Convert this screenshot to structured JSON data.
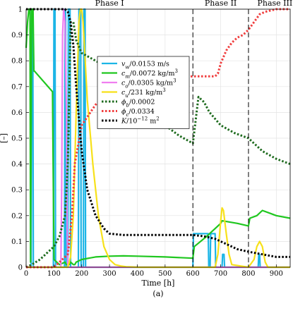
{
  "chart_data": {
    "type": "line",
    "title": "",
    "caption": "(a)",
    "xlabel": "Time [h]",
    "ylabel": "[–]",
    "xlim": [
      0,
      950
    ],
    "ylim": [
      0,
      1
    ],
    "xticks": [
      "0",
      "100",
      "200",
      "300",
      "400",
      "500",
      "600",
      "700",
      "800",
      "900"
    ],
    "yticks": [
      "0",
      "0.1",
      "0.2",
      "0.3",
      "0.4",
      "0.5",
      "0.6",
      "0.7",
      "0.8",
      "0.9",
      "1"
    ],
    "grid": true,
    "legend_position": "upper-center",
    "phase_boundaries": [
      600,
      800
    ],
    "phase_labels": [
      {
        "text": "Phase I",
        "x": 300
      },
      {
        "text": "Phase II",
        "x": 700
      },
      {
        "text": "Phase III",
        "x": 895
      }
    ],
    "series": [
      {
        "name": "v_w/0.0153 m/s",
        "legend_main": "v",
        "legend_sub": "w",
        "legend_rest": "/0.0153 m/s",
        "legend_sup": "",
        "color": "#1cb5e6",
        "dash": "solid",
        "x": [
          0,
          18,
          20,
          24,
          26,
          98,
          100,
          104,
          106,
          138,
          140,
          142,
          144,
          150,
          152,
          158,
          160,
          188,
          190,
          196,
          198,
          206,
          208,
          212,
          214,
          600,
          602,
          655,
          657,
          662,
          664,
          680,
          682,
          705,
          707,
          712,
          714,
          835,
          837,
          840,
          842,
          950
        ],
        "y": [
          0,
          0,
          1,
          1,
          0,
          0,
          1,
          1,
          0,
          0,
          1,
          1,
          0,
          0,
          1,
          1,
          0,
          0,
          1,
          1,
          0,
          0,
          1,
          1,
          0,
          0,
          0.13,
          0.13,
          0,
          0,
          0.13,
          0.13,
          0,
          0,
          0.05,
          0.05,
          0,
          0,
          0.05,
          0.05,
          0,
          0
        ]
      },
      {
        "name": "c_m/0.0072 kg/m^3",
        "legend_main": "c",
        "legend_sub": "m",
        "legend_rest": "/0.0072 kg/m",
        "legend_sup": "3",
        "color": "#1fc71f",
        "dash": "solid",
        "x": [
          0,
          5,
          10,
          14,
          16,
          20,
          25,
          28,
          30,
          95,
          100,
          120,
          140,
          145,
          155,
          160,
          170,
          175,
          180,
          200,
          250,
          300,
          350,
          400,
          500,
          600,
          605,
          650,
          700,
          705,
          760,
          800,
          805,
          830,
          850,
          900,
          950
        ],
        "y": [
          0.85,
          0.95,
          1,
          1,
          0.02,
          1,
          1,
          0.76,
          0.76,
          0.68,
          0.03,
          0.01,
          0.02,
          0.01,
          0.01,
          0.02,
          0.01,
          0.01,
          0.02,
          0.03,
          0.04,
          0.043,
          0.044,
          0.043,
          0.04,
          0.035,
          0.08,
          0.12,
          0.17,
          0.18,
          0.17,
          0.16,
          0.19,
          0.2,
          0.22,
          0.2,
          0.19
        ]
      },
      {
        "name": "c_o/0.0305 kg/m^3",
        "legend_main": "c",
        "legend_sub": "o",
        "legend_rest": "/0.0305 kg/m",
        "legend_sup": "3",
        "color": "#f07ef0",
        "dash": "solid",
        "x": [
          0,
          125,
          128,
          131,
          135,
          140,
          145,
          148,
          150,
          155,
          160,
          200,
          950
        ],
        "y": [
          0,
          0,
          0.3,
          0.9,
          1,
          0.95,
          0.6,
          0.1,
          0,
          0,
          0,
          0,
          0
        ]
      },
      {
        "name": "c_u/231 kg/m^3",
        "legend_main": "c",
        "legend_sub": "u",
        "legend_rest": "/231 kg/m",
        "legend_sup": "3",
        "color": "#f7e11a",
        "dash": "solid",
        "x": [
          0,
          150,
          160,
          170,
          180,
          190,
          195,
          200,
          205,
          210,
          220,
          240,
          260,
          280,
          300,
          320,
          340,
          360,
          380,
          400,
          600,
          680,
          690,
          700,
          705,
          710,
          720,
          730,
          740,
          800,
          820,
          830,
          840,
          850,
          860,
          870,
          950
        ],
        "y": [
          0,
          0,
          0.04,
          0.2,
          0.6,
          0.95,
          1,
          1,
          0.95,
          0.85,
          0.65,
          0.4,
          0.2,
          0.08,
          0.03,
          0.01,
          0.005,
          0.002,
          0.001,
          0,
          0,
          0,
          0.05,
          0.18,
          0.23,
          0.22,
          0.13,
          0.05,
          0.01,
          0,
          0.03,
          0.08,
          0.1,
          0.08,
          0.02,
          0,
          0
        ]
      },
      {
        "name": "phi_b/0.0002",
        "legend_main": "ϕ",
        "legend_sub": "b",
        "legend_rest": "/0.0002",
        "legend_sup": "",
        "color": "#1e6b1e",
        "dash": "dot",
        "x": [
          0,
          20,
          50,
          80,
          100,
          120,
          140,
          150,
          160,
          170,
          180,
          200,
          250,
          300,
          350,
          400,
          450,
          500,
          550,
          600,
          620,
          640,
          660,
          700,
          750,
          800,
          850,
          900,
          950
        ],
        "y": [
          0,
          0.01,
          0.03,
          0.06,
          0.08,
          0.12,
          0.2,
          0.4,
          0.95,
          0.95,
          0.88,
          0.83,
          0.8,
          0.77,
          0.72,
          0.66,
          0.6,
          0.55,
          0.51,
          0.48,
          0.66,
          0.64,
          0.6,
          0.55,
          0.52,
          0.5,
          0.45,
          0.42,
          0.4
        ]
      },
      {
        "name": "phi_c/0.0334",
        "legend_main": "ϕ",
        "legend_sub": "c",
        "legend_rest": "/0.0334",
        "legend_sup": "",
        "color": "#f03e3e",
        "dash": "dot",
        "x": [
          0,
          100,
          150,
          165,
          175,
          200,
          250,
          300,
          400,
          500,
          600,
          680,
          690,
          700,
          720,
          740,
          760,
          780,
          800,
          820,
          840,
          860,
          900,
          950
        ],
        "y": [
          0,
          0,
          0.05,
          0.2,
          0.4,
          0.55,
          0.63,
          0.68,
          0.71,
          0.73,
          0.74,
          0.74,
          0.75,
          0.79,
          0.84,
          0.87,
          0.89,
          0.9,
          0.92,
          0.95,
          0.98,
          0.99,
          1,
          1
        ]
      },
      {
        "name": "K/10^-12 m^2",
        "legend_main": "K",
        "legend_sub": "",
        "legend_rest": "/10",
        "legend_sup": "−12",
        "legend_tail": " m",
        "legend_sup2": "2",
        "color": "#000000",
        "dash": "dot",
        "x": [
          0,
          100,
          140,
          150,
          160,
          170,
          180,
          200,
          220,
          250,
          280,
          300,
          350,
          400,
          450,
          500,
          550,
          600,
          640,
          680,
          720,
          760,
          800,
          850,
          900,
          950
        ],
        "y": [
          1,
          1,
          1,
          0.99,
          0.95,
          0.86,
          0.7,
          0.45,
          0.3,
          0.2,
          0.15,
          0.13,
          0.125,
          0.125,
          0.125,
          0.125,
          0.125,
          0.125,
          0.12,
          0.11,
          0.09,
          0.07,
          0.06,
          0.05,
          0.04,
          0.04
        ]
      }
    ]
  }
}
